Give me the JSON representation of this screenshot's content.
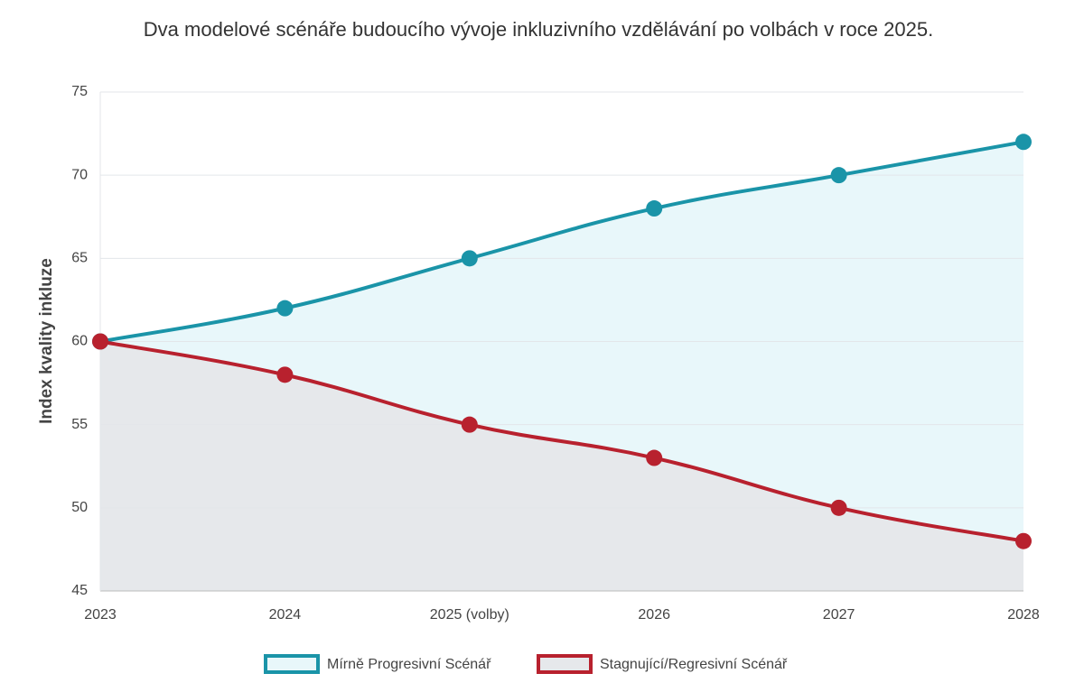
{
  "chart_data": {
    "type": "line",
    "title": "Dva modelové scénáře budoucího vývoje inkluzivního vzdělávání po volbách v roce 2025.",
    "y_label": "Index kvality inkluze",
    "categories": [
      "2023",
      "2024",
      "2025 (volby)",
      "2026",
      "2027",
      "2028"
    ],
    "series": [
      {
        "name": "Mírně Progresivní Scénář",
        "color": "#1a94a8",
        "fill_color": "#e8f7fa",
        "values": [
          60,
          62,
          65,
          68,
          70,
          72
        ]
      },
      {
        "name": "Stagnující/Regresivní Scénář",
        "color": "#b8212e",
        "fill_color": "#e6e8eb",
        "values": [
          60,
          58,
          55,
          53,
          50,
          48
        ]
      }
    ],
    "ylim": [
      45,
      75
    ],
    "yticks": [
      45,
      50,
      55,
      60,
      65,
      70,
      75
    ],
    "grid": true,
    "legend": "bottom"
  }
}
